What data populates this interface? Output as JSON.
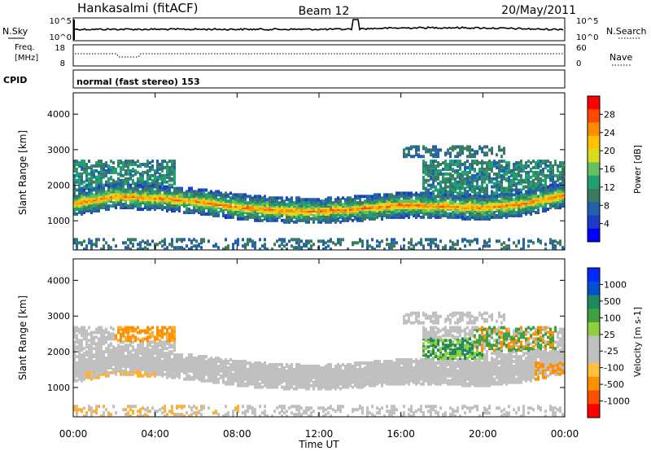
{
  "header": {
    "station": "Hankasalmi (fitACF)",
    "beam": "Beam 12",
    "date": "20/May/2011"
  },
  "noise_panel": {
    "left_label": "N.Sky",
    "right_label": "N.Search",
    "left_ticks": [
      "10^5",
      "10^0"
    ],
    "right_ticks": [
      "10^5",
      "10^0"
    ]
  },
  "freq_panel": {
    "left_label_1": "Freq.",
    "left_label_2": "[MHz]",
    "right_label": "Nave",
    "left_ticks": [
      "18",
      "8"
    ],
    "right_ticks": [
      "60",
      "0"
    ]
  },
  "cpid": {
    "label": "CPID",
    "value": "normal (fast stereo) 153"
  },
  "chart_data": [
    {
      "type": "heatmap",
      "name": "power",
      "ylabel": "Slant Range [km]",
      "yticks": [
        1000,
        2000,
        3000,
        4000
      ],
      "ylim": [
        180,
        4600
      ],
      "xlim": [
        0,
        24
      ],
      "colorbar_label": "Power [dB]",
      "colorbar_ticks": [
        "28",
        "24",
        "20",
        "16",
        "12",
        "8",
        "4"
      ],
      "colorbar_colors": [
        "#ff0000",
        "#ff4a00",
        "#ff8c00",
        "#ffc200",
        "#d8dc20",
        "#66c060",
        "#20a070",
        "#3a7a60",
        "#2060b0",
        "#1c3cc8",
        "#0000ff"
      ],
      "main_band_km": [
        [
          0,
          1500
        ],
        [
          2,
          1700
        ],
        [
          4,
          1650
        ],
        [
          6,
          1550
        ],
        [
          8,
          1400
        ],
        [
          10,
          1300
        ],
        [
          12,
          1280
        ],
        [
          14,
          1350
        ],
        [
          16,
          1450
        ],
        [
          18,
          1420
        ],
        [
          20,
          1380
        ],
        [
          22,
          1500
        ],
        [
          24,
          1750
        ]
      ]
    },
    {
      "type": "heatmap",
      "name": "velocity",
      "ylabel": "Slant Range [km]",
      "yticks": [
        1000,
        2000,
        3000,
        4000
      ],
      "ylim": [
        180,
        4600
      ],
      "xlim": [
        0,
        24
      ],
      "colorbar_label": "Velocity [m s-1]",
      "colorbar_ticks": [
        "1000",
        "500",
        "100",
        "25",
        "-25",
        "-100",
        "-500",
        "-1000"
      ],
      "colorbar_colors": [
        "#0028ff",
        "#0050d0",
        "#208860",
        "#40a040",
        "#90d040",
        "#c0c0c0",
        "#c0c0c0",
        "#ffc040",
        "#ff9000",
        "#ff5000",
        "#ff0000"
      ]
    }
  ],
  "xaxis": {
    "ticks": [
      "00:00",
      "04:00",
      "08:00",
      "12:00",
      "16:00",
      "20:00",
      "00:00"
    ],
    "label": "Time UT"
  }
}
